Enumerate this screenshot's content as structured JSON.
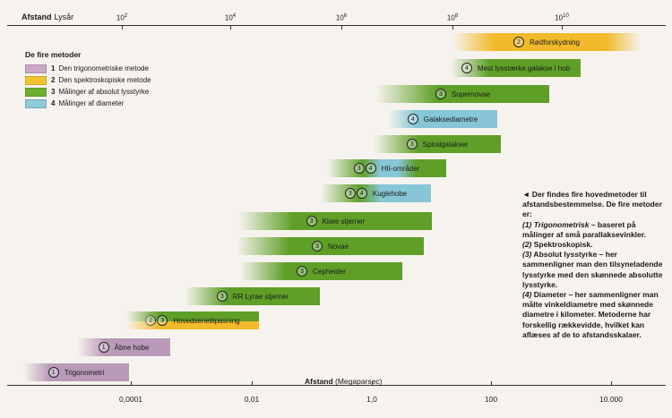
{
  "header": {
    "title_bold": "Afstand",
    "title_unit": "Lysår",
    "ticks": [
      {
        "base": "10",
        "exp": "2"
      },
      {
        "base": "10",
        "exp": "4"
      },
      {
        "base": "10",
        "exp": "6"
      },
      {
        "base": "10",
        "exp": "8"
      },
      {
        "base": "10",
        "exp": "10"
      }
    ]
  },
  "footer": {
    "title_bold": "Afstand",
    "title_unit": "(Megaparsec)",
    "ticks": [
      "0,0001",
      "0,01",
      "1,0",
      "100",
      "10.000"
    ]
  },
  "legend": {
    "title": "De fire metoder",
    "items": [
      {
        "num": "1",
        "label": "Den trigonometriske metode",
        "color": "#c9a9c6"
      },
      {
        "num": "2",
        "label": "Den spektroskopiske metode",
        "color": "#f2c230"
      },
      {
        "num": "3",
        "label": "Målinger af absolut lysstyrke",
        "color": "#6fae2e"
      },
      {
        "num": "4",
        "label": "Målinger af diameter",
        "color": "#8ecbd8"
      }
    ]
  },
  "colors": {
    "purple": "#b99ab8",
    "yellow": "#f0ba2a",
    "green": "#5f9f28",
    "cyan": "#86c6d6"
  },
  "bands": [
    {
      "id": "roedforskydning",
      "nums": [
        "2"
      ],
      "name": "Rødforskydning"
    },
    {
      "id": "mest-lysstaerke",
      "nums": [
        "4"
      ],
      "name": "Mest lysstærke galakse i hob"
    },
    {
      "id": "supernovae",
      "nums": [
        "3"
      ],
      "name": "Supernovae"
    },
    {
      "id": "galaksediametre",
      "nums": [
        "4"
      ],
      "name": "Galaksediametre"
    },
    {
      "id": "spiralgalakser",
      "nums": [
        "3"
      ],
      "name": "Spiralgalakser"
    },
    {
      "id": "hii-omraader",
      "nums": [
        "3",
        "4"
      ],
      "name": "HII-områder"
    },
    {
      "id": "kuglehobe",
      "nums": [
        "3",
        "4"
      ],
      "name": "Kuglehobe"
    },
    {
      "id": "klare-stjerner",
      "nums": [
        "3"
      ],
      "name": "Klare stjerner"
    },
    {
      "id": "novae",
      "nums": [
        "3"
      ],
      "name": "Novae"
    },
    {
      "id": "cepheider",
      "nums": [
        "3"
      ],
      "name": "Cepheider"
    },
    {
      "id": "rr-lyrae",
      "nums": [
        "3"
      ],
      "name": "RR Lyrae stjerner"
    },
    {
      "id": "hovedserie",
      "nums": [
        "2",
        "3"
      ],
      "name": "Hovedserietilpasning"
    },
    {
      "id": "aabne-hobe",
      "nums": [
        "1"
      ],
      "name": "Åbne hobe"
    },
    {
      "id": "trigonometri",
      "nums": [
        "1"
      ],
      "name": "Trigonometri"
    }
  ],
  "explanation": {
    "intro": "◄ Der findes fire hovedmetoder til afstandsbestemmelse. De fire metoder er:",
    "items": [
      {
        "num": "(1) Trigonometrisk",
        "text": " – baseret på målinger af små parallaksevinkler."
      },
      {
        "num": "(2)",
        "text": " Spektroskopisk."
      },
      {
        "num": "(3)",
        "text": " Absolut lysstyrke – her sammenligner man den tilsyneladende lysstyrke med den skønnede absolutte lysstyrke."
      },
      {
        "num": "(4)",
        "text": " Diameter – her sammenligner man målte vinkeldiametre med skønnede diametre i kilometer. Metoderne har forskellig rækkevidde, hvilket kan aflæses af de to afstandsskalaer."
      }
    ]
  }
}
